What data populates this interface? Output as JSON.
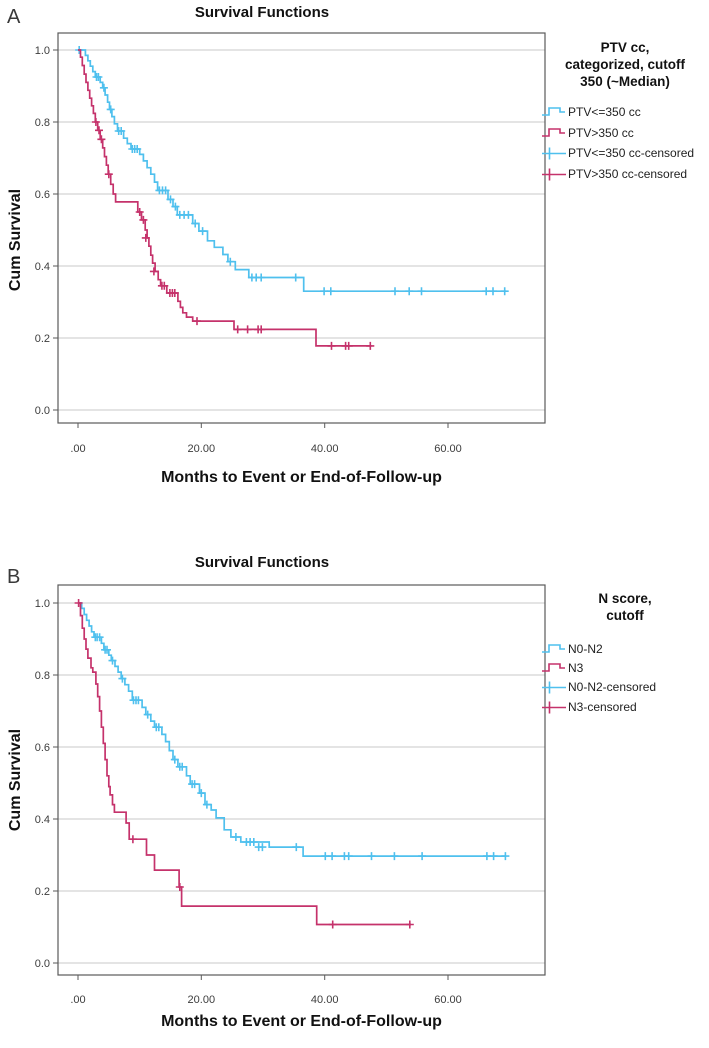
{
  "colors": {
    "blue": "#4FC0EE",
    "red": "#C5326B",
    "grid": "#C9C9C9",
    "frame": "#5A5A5A"
  },
  "chart_data": [
    {
      "type": "line",
      "subtype": "kaplan-meier-step",
      "panel_label": "A",
      "title": "Survival Functions",
      "xlabel": "Months to Event or End-of-Follow-up",
      "ylabel": "Cum Survival",
      "x_ticks": {
        "values": [
          0,
          20,
          40,
          60
        ],
        "labels": [
          ".00",
          "20.00",
          "40.00",
          "60.00"
        ]
      },
      "y_ticks": {
        "values": [
          0.0,
          0.2,
          0.4,
          0.6,
          0.8,
          1.0
        ],
        "labels": [
          "0.0",
          "0.2",
          "0.4",
          "0.6",
          "0.8",
          "1.0"
        ]
      },
      "xlim": [
        -3.25,
        75.75
      ],
      "ylim": [
        -0.033,
        1.047
      ],
      "grid": "horizontal",
      "legend": {
        "position": "right",
        "title_lines": [
          "PTV cc,",
          "categorized, cutoff",
          "350 (~Median)"
        ],
        "items": [
          {
            "label": "PTV<=350 cc",
            "marker": "step-line",
            "color": "#4FC0EE"
          },
          {
            "label": "PTV>350 cc",
            "marker": "step-line",
            "color": "#C5326B"
          },
          {
            "label": "PTV<=350 cc-censored",
            "marker": "plus",
            "color": "#4FC0EE"
          },
          {
            "label": "PTV>350 cc-censored",
            "marker": "plus",
            "color": "#C5326B"
          }
        ]
      },
      "series": [
        {
          "name": "PTV<=350 cc",
          "color": "#4FC0EE",
          "steps": [
            [
              0,
              1.0
            ],
            [
              1.2,
              0.985
            ],
            [
              1.6,
              0.97
            ],
            [
              2.0,
              0.955
            ],
            [
              2.4,
              0.94
            ],
            [
              2.8,
              0.925
            ],
            [
              3.6,
              0.91
            ],
            [
              4.0,
              0.895
            ],
            [
              4.4,
              0.875
            ],
            [
              4.8,
              0.855
            ],
            [
              5.1,
              0.835
            ],
            [
              5.5,
              0.815
            ],
            [
              5.9,
              0.795
            ],
            [
              6.4,
              0.775
            ],
            [
              7.4,
              0.755
            ],
            [
              8.0,
              0.74
            ],
            [
              8.6,
              0.725
            ],
            [
              10.0,
              0.71
            ],
            [
              10.6,
              0.692
            ],
            [
              11.2,
              0.673
            ],
            [
              11.8,
              0.655
            ],
            [
              12.4,
              0.633
            ],
            [
              12.9,
              0.61
            ],
            [
              14.6,
              0.585
            ],
            [
              15.4,
              0.565
            ],
            [
              16.1,
              0.542
            ],
            [
              18.6,
              0.518
            ],
            [
              19.6,
              0.497
            ],
            [
              21.0,
              0.47
            ],
            [
              22.1,
              0.452
            ],
            [
              23.5,
              0.432
            ],
            [
              24.3,
              0.412
            ],
            [
              25.5,
              0.39
            ],
            [
              27.7,
              0.368
            ],
            [
              36.6,
              0.33
            ],
            [
              69.4,
              0.33
            ]
          ],
          "censored": [
            [
              0.2,
              1.0
            ],
            [
              3.0,
              0.925
            ],
            [
              3.3,
              0.925
            ],
            [
              4.2,
              0.895
            ],
            [
              5.3,
              0.835
            ],
            [
              6.6,
              0.775
            ],
            [
              7.0,
              0.775
            ],
            [
              8.8,
              0.725
            ],
            [
              9.2,
              0.725
            ],
            [
              9.6,
              0.725
            ],
            [
              13.2,
              0.61
            ],
            [
              13.7,
              0.61
            ],
            [
              14.2,
              0.61
            ],
            [
              15.0,
              0.585
            ],
            [
              15.8,
              0.565
            ],
            [
              16.5,
              0.542
            ],
            [
              17.2,
              0.542
            ],
            [
              17.9,
              0.542
            ],
            [
              19.0,
              0.518
            ],
            [
              20.2,
              0.497
            ],
            [
              24.7,
              0.412
            ],
            [
              28.2,
              0.368
            ],
            [
              28.9,
              0.368
            ],
            [
              29.7,
              0.368
            ],
            [
              35.3,
              0.368
            ],
            [
              39.9,
              0.33
            ],
            [
              41.0,
              0.33
            ],
            [
              51.4,
              0.33
            ],
            [
              53.7,
              0.33
            ],
            [
              55.7,
              0.33
            ],
            [
              66.2,
              0.33
            ],
            [
              67.3,
              0.33
            ],
            [
              69.2,
              0.33
            ]
          ]
        },
        {
          "name": "PTV>350 cc",
          "color": "#C5326B",
          "steps": [
            [
              0,
              1.0
            ],
            [
              0.4,
              0.98
            ],
            [
              0.7,
              0.957
            ],
            [
              1.0,
              0.933
            ],
            [
              1.3,
              0.91
            ],
            [
              1.6,
              0.888
            ],
            [
              1.9,
              0.866
            ],
            [
              2.2,
              0.845
            ],
            [
              2.5,
              0.824
            ],
            [
              2.8,
              0.8
            ],
            [
              3.2,
              0.777
            ],
            [
              3.6,
              0.752
            ],
            [
              4.0,
              0.728
            ],
            [
              4.3,
              0.704
            ],
            [
              4.6,
              0.68
            ],
            [
              4.9,
              0.655
            ],
            [
              5.3,
              0.627
            ],
            [
              5.7,
              0.6
            ],
            [
              6.1,
              0.578
            ],
            [
              9.7,
              0.55
            ],
            [
              10.3,
              0.528
            ],
            [
              10.9,
              0.5
            ],
            [
              11.2,
              0.478
            ],
            [
              11.5,
              0.455
            ],
            [
              11.8,
              0.43
            ],
            [
              12.1,
              0.408
            ],
            [
              12.5,
              0.385
            ],
            [
              13.0,
              0.362
            ],
            [
              13.4,
              0.345
            ],
            [
              14.4,
              0.325
            ],
            [
              16.2,
              0.302
            ],
            [
              16.6,
              0.285
            ],
            [
              17.0,
              0.27
            ],
            [
              17.6,
              0.258
            ],
            [
              18.6,
              0.247
            ],
            [
              25.3,
              0.224
            ],
            [
              38.6,
              0.178
            ],
            [
              47.6,
              0.178
            ]
          ],
          "censored": [
            [
              2.9,
              0.8
            ],
            [
              3.4,
              0.777
            ],
            [
              3.8,
              0.752
            ],
            [
              5.0,
              0.655
            ],
            [
              10.0,
              0.55
            ],
            [
              10.6,
              0.528
            ],
            [
              11.0,
              0.478
            ],
            [
              12.3,
              0.385
            ],
            [
              13.6,
              0.345
            ],
            [
              14.0,
              0.345
            ],
            [
              14.9,
              0.325
            ],
            [
              15.3,
              0.325
            ],
            [
              15.7,
              0.325
            ],
            [
              19.3,
              0.247
            ],
            [
              25.9,
              0.224
            ],
            [
              27.5,
              0.224
            ],
            [
              29.2,
              0.224
            ],
            [
              29.7,
              0.224
            ],
            [
              41.1,
              0.178
            ],
            [
              43.4,
              0.178
            ],
            [
              43.9,
              0.178
            ],
            [
              47.4,
              0.178
            ]
          ]
        }
      ]
    },
    {
      "type": "line",
      "subtype": "kaplan-meier-step",
      "panel_label": "B",
      "title": "Survival Functions",
      "xlabel": "Months to Event or End-of-Follow-up",
      "ylabel": "Cum Survival",
      "x_ticks": {
        "values": [
          0,
          20,
          40,
          60
        ],
        "labels": [
          ".00",
          "20.00",
          "40.00",
          "60.00"
        ]
      },
      "y_ticks": {
        "values": [
          0.0,
          0.2,
          0.4,
          0.6,
          0.8,
          1.0
        ],
        "labels": [
          "0.0",
          "0.2",
          "0.4",
          "0.6",
          "0.8",
          "1.0"
        ]
      },
      "xlim": [
        -3.25,
        75.75
      ],
      "ylim": [
        -0.033,
        1.047
      ],
      "grid": "horizontal",
      "legend": {
        "position": "right",
        "title_lines": [
          "N score,",
          "cutoff"
        ],
        "items": [
          {
            "label": "N0-N2",
            "marker": "step-line",
            "color": "#4FC0EE"
          },
          {
            "label": "N3",
            "marker": "step-line",
            "color": "#C5326B"
          },
          {
            "label": "N0-N2-censored",
            "marker": "plus",
            "color": "#4FC0EE"
          },
          {
            "label": "N3-censored",
            "marker": "plus",
            "color": "#C5326B"
          }
        ]
      },
      "series": [
        {
          "name": "N0-N2",
          "color": "#4FC0EE",
          "steps": [
            [
              0,
              1.0
            ],
            [
              0.6,
              0.985
            ],
            [
              1.0,
              0.968
            ],
            [
              1.4,
              0.952
            ],
            [
              1.8,
              0.936
            ],
            [
              2.2,
              0.92
            ],
            [
              2.6,
              0.905
            ],
            [
              3.8,
              0.888
            ],
            [
              4.2,
              0.87
            ],
            [
              5.0,
              0.855
            ],
            [
              5.4,
              0.84
            ],
            [
              6.0,
              0.824
            ],
            [
              6.5,
              0.808
            ],
            [
              7.0,
              0.79
            ],
            [
              7.6,
              0.773
            ],
            [
              8.2,
              0.755
            ],
            [
              8.8,
              0.73
            ],
            [
              10.4,
              0.71
            ],
            [
              11.0,
              0.69
            ],
            [
              11.8,
              0.672
            ],
            [
              12.4,
              0.655
            ],
            [
              13.6,
              0.635
            ],
            [
              14.2,
              0.615
            ],
            [
              14.8,
              0.59
            ],
            [
              15.4,
              0.565
            ],
            [
              16.2,
              0.545
            ],
            [
              17.6,
              0.52
            ],
            [
              18.2,
              0.497
            ],
            [
              19.7,
              0.472
            ],
            [
              20.6,
              0.44
            ],
            [
              21.6,
              0.425
            ],
            [
              22.4,
              0.403
            ],
            [
              23.7,
              0.37
            ],
            [
              24.8,
              0.35
            ],
            [
              26.4,
              0.336
            ],
            [
              31.0,
              0.322
            ],
            [
              36.5,
              0.297
            ],
            [
              69.4,
              0.297
            ]
          ],
          "censored": [
            [
              2.8,
              0.905
            ],
            [
              3.1,
              0.905
            ],
            [
              3.5,
              0.905
            ],
            [
              4.4,
              0.87
            ],
            [
              4.7,
              0.87
            ],
            [
              5.6,
              0.84
            ],
            [
              7.2,
              0.79
            ],
            [
              9.0,
              0.73
            ],
            [
              9.4,
              0.73
            ],
            [
              9.8,
              0.73
            ],
            [
              11.3,
              0.69
            ],
            [
              12.7,
              0.655
            ],
            [
              13.1,
              0.655
            ],
            [
              15.7,
              0.565
            ],
            [
              16.5,
              0.545
            ],
            [
              16.9,
              0.545
            ],
            [
              18.5,
              0.497
            ],
            [
              18.9,
              0.497
            ],
            [
              20.0,
              0.472
            ],
            [
              20.9,
              0.44
            ],
            [
              25.6,
              0.35
            ],
            [
              27.3,
              0.336
            ],
            [
              27.9,
              0.336
            ],
            [
              28.5,
              0.336
            ],
            [
              29.3,
              0.322
            ],
            [
              29.9,
              0.322
            ],
            [
              35.4,
              0.322
            ],
            [
              40.1,
              0.297
            ],
            [
              41.2,
              0.297
            ],
            [
              43.2,
              0.297
            ],
            [
              43.9,
              0.297
            ],
            [
              47.6,
              0.297
            ],
            [
              51.3,
              0.297
            ],
            [
              55.8,
              0.297
            ],
            [
              66.3,
              0.297
            ],
            [
              67.4,
              0.297
            ],
            [
              69.3,
              0.297
            ]
          ]
        },
        {
          "name": "N3",
          "color": "#C5326B",
          "steps": [
            [
              0,
              1.0
            ],
            [
              0.4,
              0.965
            ],
            [
              0.7,
              0.93
            ],
            [
              1.0,
              0.9
            ],
            [
              1.3,
              0.872
            ],
            [
              1.6,
              0.847
            ],
            [
              2.1,
              0.82
            ],
            [
              2.4,
              0.808
            ],
            [
              2.9,
              0.775
            ],
            [
              3.2,
              0.74
            ],
            [
              3.5,
              0.7
            ],
            [
              3.8,
              0.655
            ],
            [
              4.1,
              0.61
            ],
            [
              4.4,
              0.565
            ],
            [
              4.7,
              0.52
            ],
            [
              5.0,
              0.49
            ],
            [
              5.2,
              0.467
            ],
            [
              5.6,
              0.44
            ],
            [
              5.9,
              0.419
            ],
            [
              7.8,
              0.389
            ],
            [
              8.3,
              0.344
            ],
            [
              11.1,
              0.3
            ],
            [
              12.4,
              0.258
            ],
            [
              16.4,
              0.211
            ],
            [
              16.8,
              0.158
            ],
            [
              38.7,
              0.107
            ],
            [
              54.0,
              0.107
            ]
          ],
          "censored": [
            [
              0.1,
              1.0
            ],
            [
              8.9,
              0.344
            ],
            [
              16.5,
              0.211
            ],
            [
              41.3,
              0.107
            ],
            [
              53.8,
              0.107
            ]
          ]
        }
      ]
    }
  ]
}
